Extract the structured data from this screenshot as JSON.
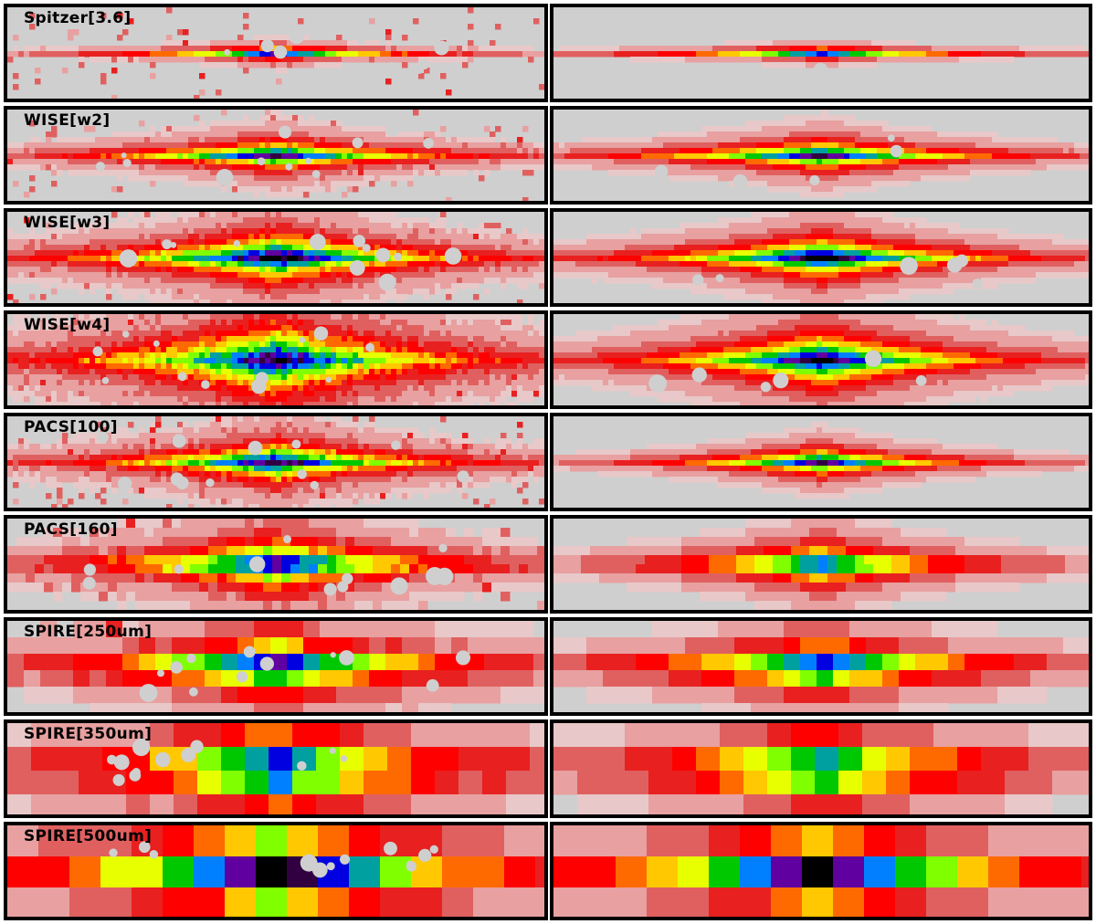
{
  "figure": {
    "rows": [
      {
        "band": "Spitzer[3.6]",
        "pixel": "smooth",
        "observed": {
          "extent": 0.72,
          "peak": 0.9,
          "thin": 0.09,
          "noise": 0.25
        },
        "model": {
          "extent": 0.82,
          "peak": 0.85,
          "thin": 0.08,
          "noise": 0.05
        }
      },
      {
        "band": "WISE[w2]",
        "pixel": "smooth",
        "observed": {
          "extent": 0.85,
          "peak": 0.88,
          "thin": 0.22,
          "noise": 0.35
        },
        "model": {
          "extent": 0.88,
          "peak": 0.88,
          "thin": 0.22,
          "noise": 0.15
        }
      },
      {
        "band": "WISE[w3]",
        "pixel": "smooth",
        "observed": {
          "extent": 0.92,
          "peak": 0.95,
          "thin": 0.36,
          "noise": 0.55
        },
        "model": {
          "extent": 0.85,
          "peak": 0.97,
          "thin": 0.3,
          "noise": 0.15
        }
      },
      {
        "band": "WISE[w4]",
        "pixel": "smooth",
        "observed": {
          "extent": 0.95,
          "peak": 0.9,
          "thin": 0.55,
          "noise": 0.7
        },
        "model": {
          "extent": 0.85,
          "peak": 0.94,
          "thin": 0.4,
          "noise": 0.15
        }
      },
      {
        "band": "PACS[100]",
        "pixel": "blocky6",
        "observed": {
          "extent": 0.85,
          "peak": 0.9,
          "thin": 0.3,
          "noise": 0.65
        },
        "model": {
          "extent": 0.7,
          "peak": 0.88,
          "thin": 0.2,
          "noise": 0.05
        }
      },
      {
        "band": "PACS[160]",
        "pixel": "blocky10",
        "observed": {
          "extent": 0.9,
          "peak": 0.92,
          "thin": 0.38,
          "noise": 0.6
        },
        "model": {
          "extent": 0.78,
          "peak": 0.85,
          "thin": 0.3,
          "noise": 0.05
        }
      },
      {
        "band": "SPIRE[250um]",
        "pixel": "blocky18",
        "observed": {
          "extent": 0.95,
          "peak": 0.95,
          "thin": 0.45,
          "noise": 0.6
        },
        "model": {
          "extent": 0.9,
          "peak": 0.92,
          "thin": 0.38,
          "noise": 0.1
        }
      },
      {
        "band": "SPIRE[350um]",
        "pixel": "blocky26",
        "observed": {
          "extent": 1.0,
          "peak": 0.95,
          "thin": 0.6,
          "noise": 0.5
        },
        "model": {
          "extent": 0.95,
          "peak": 0.9,
          "thin": 0.5,
          "noise": 0.1
        }
      },
      {
        "band": "SPIRE[500um]",
        "pixel": "blocky34",
        "observed": {
          "extent": 1.0,
          "peak": 0.95,
          "thin": 0.8,
          "noise": 0.45
        },
        "model": {
          "extent": 1.0,
          "peak": 0.9,
          "thin": 0.65,
          "noise": 0.1
        }
      }
    ],
    "colormap": [
      "#cfcfcf",
      "#e8c8c8",
      "#e8a0a0",
      "#e06060",
      "#e82020",
      "#ff0000",
      "#ff6a00",
      "#ffc800",
      "#e8ff00",
      "#80ff00",
      "#00c800",
      "#00a0a0",
      "#0080ff",
      "#0000e0",
      "#6000a0",
      "#300040",
      "#000000"
    ],
    "masked_color": "#cfcfcf"
  }
}
